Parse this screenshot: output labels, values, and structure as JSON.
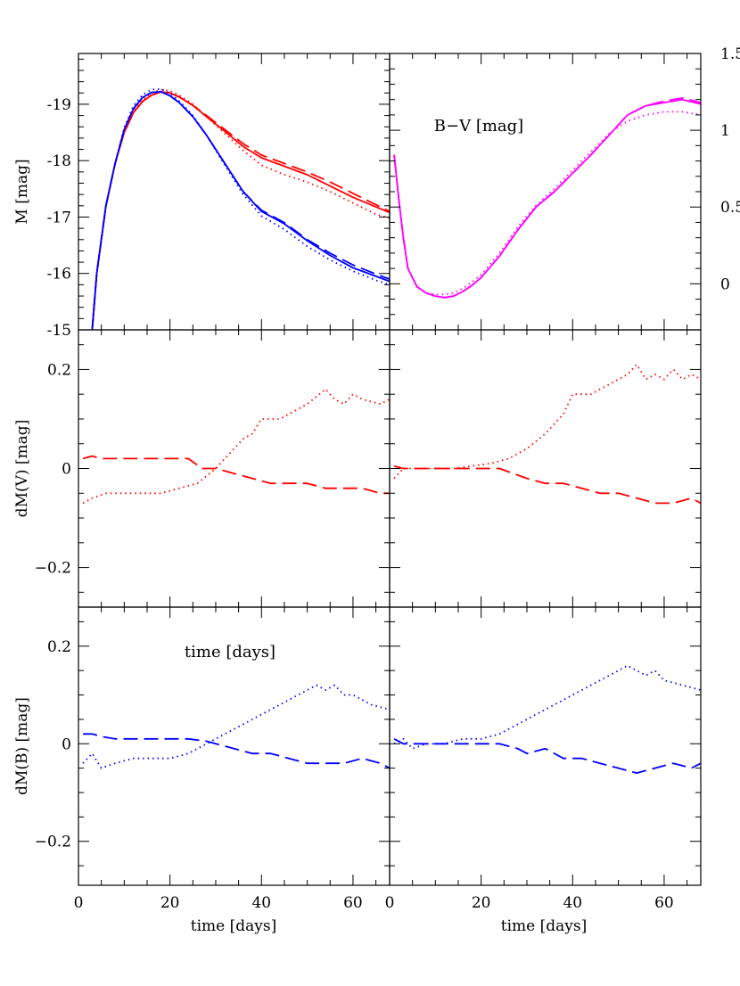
{
  "chart_data": {
    "type": "line",
    "x_ticks": [
      "0",
      "20",
      "40",
      "60"
    ],
    "xlabel": "time [days]",
    "xlim": [
      0,
      68
    ],
    "colors": {
      "V": "#ff0000",
      "B": "#0000ff",
      "BV": "#ff00ff"
    },
    "panels": [
      {
        "id": "top-left",
        "ylabel": "M [mag]",
        "ylim": [
          -15,
          -19.9
        ],
        "y_ticks": [
          "-19",
          "-18",
          "-17",
          "-16",
          "-15"
        ],
        "series": [
          {
            "band": "V",
            "style": "solid",
            "x": [
              3,
              4,
              6,
              8,
              10,
              12,
              14,
              16,
              18,
              20,
              22,
              25,
              28,
              32,
              36,
              40,
              45,
              50,
              55,
              60,
              65,
              68
            ],
            "y": [
              -15,
              -16.0,
              -17.2,
              -17.95,
              -18.5,
              -18.85,
              -19.05,
              -19.16,
              -19.22,
              -19.2,
              -19.13,
              -18.98,
              -18.78,
              -18.52,
              -18.25,
              -18.05,
              -17.9,
              -17.75,
              -17.55,
              -17.35,
              -17.18,
              -17.08
            ]
          },
          {
            "band": "V",
            "style": "dashed",
            "x": [
              3,
              4,
              6,
              8,
              10,
              12,
              14,
              16,
              18,
              20,
              22,
              25,
              28,
              32,
              36,
              40,
              45,
              50,
              55,
              60,
              65,
              68
            ],
            "y": [
              -15,
              -16.0,
              -17.2,
              -17.95,
              -18.5,
              -18.85,
              -19.05,
              -19.16,
              -19.22,
              -19.2,
              -19.13,
              -18.98,
              -18.8,
              -18.55,
              -18.3,
              -18.1,
              -17.95,
              -17.8,
              -17.62,
              -17.42,
              -17.22,
              -17.1
            ]
          },
          {
            "band": "V",
            "style": "dotted",
            "x": [
              3,
              4,
              6,
              8,
              10,
              12,
              14,
              16,
              18,
              20,
              22,
              25,
              28,
              32,
              36,
              40,
              45,
              50,
              55,
              60,
              65,
              68
            ],
            "y": [
              -15,
              -16.0,
              -17.2,
              -17.95,
              -18.52,
              -18.88,
              -19.08,
              -19.2,
              -19.26,
              -19.24,
              -19.16,
              -19.0,
              -18.78,
              -18.48,
              -18.18,
              -17.92,
              -17.75,
              -17.62,
              -17.45,
              -17.25,
              -17.05,
              -16.98
            ]
          },
          {
            "band": "B",
            "style": "solid",
            "x": [
              3,
              4,
              6,
              8,
              10,
              12,
              14,
              16,
              18,
              20,
              22,
              25,
              28,
              32,
              36,
              40,
              45,
              50,
              55,
              60,
              65,
              68
            ],
            "y": [
              -15,
              -16.0,
              -17.2,
              -17.95,
              -18.55,
              -18.92,
              -19.12,
              -19.21,
              -19.22,
              -19.15,
              -19.03,
              -18.78,
              -18.45,
              -17.95,
              -17.45,
              -17.1,
              -16.88,
              -16.58,
              -16.32,
              -16.1,
              -15.95,
              -15.86
            ]
          },
          {
            "band": "B",
            "style": "dashed",
            "x": [
              3,
              4,
              6,
              8,
              10,
              12,
              14,
              16,
              18,
              20,
              22,
              25,
              28,
              32,
              36,
              40,
              45,
              50,
              55,
              60,
              65,
              68
            ],
            "y": [
              -15,
              -16.0,
              -17.2,
              -17.95,
              -18.55,
              -18.92,
              -19.12,
              -19.21,
              -19.22,
              -19.15,
              -19.03,
              -18.78,
              -18.45,
              -17.95,
              -17.45,
              -17.12,
              -16.9,
              -16.6,
              -16.36,
              -16.15,
              -15.99,
              -15.9
            ]
          },
          {
            "band": "B",
            "style": "dotted",
            "x": [
              3,
              4,
              6,
              8,
              10,
              12,
              14,
              16,
              18,
              20,
              22,
              25,
              28,
              32,
              36,
              40,
              45,
              50,
              55,
              60,
              65,
              68
            ],
            "y": [
              -15,
              -16.0,
              -17.2,
              -17.95,
              -18.58,
              -18.97,
              -19.17,
              -19.26,
              -19.27,
              -19.2,
              -19.06,
              -18.8,
              -18.45,
              -17.92,
              -17.4,
              -17.02,
              -16.78,
              -16.48,
              -16.24,
              -16.04,
              -15.88,
              -15.8
            ]
          }
        ]
      },
      {
        "id": "top-right",
        "annotation": "B−V [mag]",
        "ylim": [
          -0.3,
          1.5
        ],
        "y_ticks": [
          "1.5",
          "1",
          "0.5",
          "0"
        ],
        "series": [
          {
            "band": "BV",
            "style": "solid",
            "x": [
              1,
              2,
              3,
              4,
              6,
              8,
              10,
              12,
              14,
              16,
              18,
              20,
              24,
              28,
              32,
              36,
              40,
              44,
              48,
              52,
              56,
              60,
              64,
              68
            ],
            "y": [
              0.84,
              0.55,
              0.3,
              0.1,
              -0.02,
              -0.06,
              -0.08,
              -0.09,
              -0.08,
              -0.05,
              -0.01,
              0.04,
              0.18,
              0.35,
              0.5,
              0.6,
              0.72,
              0.84,
              0.97,
              1.1,
              1.16,
              1.18,
              1.2,
              1.17
            ]
          },
          {
            "band": "BV",
            "style": "dashed",
            "x": [
              1,
              2,
              3,
              4,
              6,
              8,
              10,
              12,
              14,
              16,
              18,
              20,
              24,
              28,
              32,
              36,
              40,
              44,
              48,
              52,
              56,
              60,
              64,
              68
            ],
            "y": [
              0.84,
              0.55,
              0.3,
              0.1,
              -0.02,
              -0.06,
              -0.08,
              -0.09,
              -0.08,
              -0.05,
              -0.01,
              0.04,
              0.18,
              0.35,
              0.5,
              0.6,
              0.72,
              0.84,
              0.97,
              1.1,
              1.16,
              1.19,
              1.21,
              1.18
            ]
          },
          {
            "band": "BV",
            "style": "dotted",
            "x": [
              1,
              2,
              3,
              4,
              6,
              8,
              10,
              12,
              14,
              16,
              18,
              20,
              24,
              28,
              32,
              36,
              40,
              44,
              48,
              52,
              56,
              60,
              64,
              68
            ],
            "y": [
              0.84,
              0.55,
              0.3,
              0.1,
              -0.02,
              -0.06,
              -0.07,
              -0.07,
              -0.06,
              -0.03,
              0.01,
              0.06,
              0.2,
              0.37,
              0.51,
              0.62,
              0.74,
              0.86,
              0.98,
              1.06,
              1.1,
              1.12,
              1.12,
              1.1
            ]
          }
        ]
      },
      {
        "id": "mid-left",
        "ylabel": "dM(V) [mag]",
        "ylim": [
          -0.28,
          0.28
        ],
        "y_ticks": [
          "0.2",
          "0",
          "−0.2"
        ],
        "series": [
          {
            "band": "V",
            "style": "dashed",
            "x": [
              1,
              3,
              5,
              8,
              12,
              16,
              20,
              24,
              27,
              30,
              34,
              38,
              42,
              46,
              50,
              54,
              58,
              62,
              66,
              68
            ],
            "y": [
              0.02,
              0.025,
              0.02,
              0.02,
              0.02,
              0.02,
              0.02,
              0.02,
              0.0,
              0.0,
              -0.01,
              -0.02,
              -0.03,
              -0.03,
              -0.03,
              -0.04,
              -0.04,
              -0.04,
              -0.05,
              -0.05
            ]
          },
          {
            "band": "V",
            "style": "dotted",
            "x": [
              1,
              3,
              6,
              10,
              14,
              18,
              22,
              26,
              30,
              33,
              36,
              38,
              40,
              44,
              46,
              50,
              54,
              56,
              58,
              60,
              62,
              66,
              68
            ],
            "y": [
              -0.07,
              -0.06,
              -0.05,
              -0.05,
              -0.05,
              -0.05,
              -0.04,
              -0.03,
              0.0,
              0.03,
              0.06,
              0.07,
              0.1,
              0.1,
              0.11,
              0.13,
              0.16,
              0.14,
              0.13,
              0.15,
              0.14,
              0.13,
              0.14
            ]
          }
        ]
      },
      {
        "id": "mid-right",
        "ylim": [
          -0.28,
          0.28
        ],
        "series": [
          {
            "band": "V",
            "style": "dashed",
            "x": [
              1,
              3,
              5,
              8,
              12,
              16,
              20,
              24,
              27,
              30,
              34,
              38,
              42,
              46,
              50,
              54,
              58,
              62,
              66,
              68
            ],
            "y": [
              0.005,
              0.0,
              0.0,
              0.0,
              0.0,
              0.0,
              0.0,
              0.0,
              -0.01,
              -0.02,
              -0.03,
              -0.03,
              -0.04,
              -0.05,
              -0.05,
              -0.06,
              -0.07,
              -0.07,
              -0.06,
              -0.07
            ]
          },
          {
            "band": "V",
            "style": "dotted",
            "x": [
              1,
              3,
              6,
              10,
              14,
              18,
              22,
              26,
              30,
              34,
              38,
              40,
              44,
              48,
              52,
              54,
              56,
              58,
              60,
              62,
              64,
              66,
              68
            ],
            "y": [
              -0.02,
              0.0,
              0.0,
              0.0,
              0.0,
              0.005,
              0.01,
              0.02,
              0.04,
              0.07,
              0.11,
              0.15,
              0.15,
              0.17,
              0.19,
              0.21,
              0.18,
              0.19,
              0.18,
              0.2,
              0.18,
              0.19,
              0.18
            ]
          }
        ]
      },
      {
        "id": "bottom-left",
        "ylabel": "dM(B) [mag]",
        "annotation": "time [days]",
        "ylim": [
          -0.29,
          0.28
        ],
        "y_ticks": [
          "0.2",
          "0",
          "−0.2"
        ],
        "series": [
          {
            "band": "B",
            "style": "dashed",
            "x": [
              1,
              3,
              5,
              8,
              12,
              16,
              20,
              24,
              28,
              30,
              34,
              38,
              42,
              46,
              50,
              54,
              58,
              62,
              66,
              68
            ],
            "y": [
              0.02,
              0.02,
              0.015,
              0.01,
              0.01,
              0.01,
              0.01,
              0.01,
              0.005,
              0.0,
              -0.01,
              -0.02,
              -0.02,
              -0.03,
              -0.04,
              -0.04,
              -0.04,
              -0.03,
              -0.04,
              -0.05
            ]
          },
          {
            "band": "B",
            "style": "dotted",
            "x": [
              1,
              3,
              5,
              8,
              12,
              16,
              20,
              24,
              28,
              32,
              36,
              40,
              44,
              48,
              52,
              54,
              56,
              58,
              60,
              64,
              68
            ],
            "y": [
              -0.04,
              -0.02,
              -0.05,
              -0.04,
              -0.03,
              -0.03,
              -0.03,
              -0.02,
              0.0,
              0.02,
              0.04,
              0.06,
              0.08,
              0.1,
              0.12,
              0.11,
              0.12,
              0.1,
              0.1,
              0.08,
              0.07
            ]
          }
        ]
      },
      {
        "id": "bottom-right",
        "ylim": [
          -0.29,
          0.28
        ],
        "series": [
          {
            "band": "B",
            "style": "dashed",
            "x": [
              1,
              3,
              5,
              8,
              12,
              16,
              20,
              24,
              28,
              30,
              34,
              38,
              42,
              46,
              50,
              54,
              58,
              62,
              66,
              68
            ],
            "y": [
              0.01,
              0.0,
              0.0,
              0.0,
              0.0,
              0.0,
              0.0,
              0.0,
              -0.01,
              -0.02,
              -0.01,
              -0.03,
              -0.03,
              -0.04,
              -0.05,
              -0.06,
              -0.05,
              -0.04,
              -0.05,
              -0.04
            ]
          },
          {
            "band": "B",
            "style": "dotted",
            "x": [
              1,
              3,
              5,
              8,
              12,
              16,
              20,
              24,
              28,
              32,
              36,
              40,
              44,
              48,
              52,
              54,
              56,
              58,
              60,
              64,
              68
            ],
            "y": [
              0.0,
              0.01,
              -0.01,
              0.0,
              0.0,
              0.01,
              0.01,
              0.02,
              0.04,
              0.06,
              0.08,
              0.1,
              0.12,
              0.14,
              0.16,
              0.15,
              0.14,
              0.15,
              0.13,
              0.12,
              0.11
            ]
          }
        ]
      }
    ]
  }
}
